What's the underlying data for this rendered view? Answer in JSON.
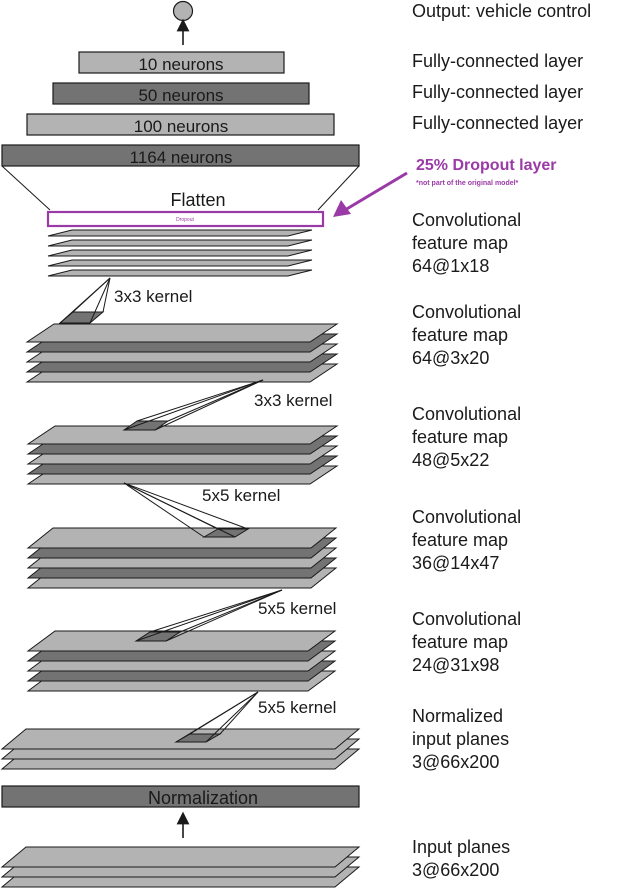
{
  "colors": {
    "plate_light": "#b3b3b3",
    "plate_dark": "#737373",
    "stroke": "#1a1a1a",
    "dropout_accent": "#9a3aa6"
  },
  "output": {
    "label": "Output: vehicle control"
  },
  "dense_layers": [
    {
      "neurons": "10 neurons",
      "desc": "Fully-connected layer"
    },
    {
      "neurons": "50 neurons",
      "desc": "Fully-connected layer"
    },
    {
      "neurons": "100 neurons",
      "desc": "Fully-connected layer"
    },
    {
      "neurons": "1164 neurons",
      "desc": ""
    }
  ],
  "flatten": {
    "label": "Flatten",
    "dropout_inner": "Dropout"
  },
  "dropout": {
    "title": "25% Dropout layer",
    "note": "*not part of the original model*"
  },
  "feature_maps": [
    {
      "line1": "Convolutional",
      "line2": "feature map",
      "line3": "64@1x18"
    },
    {
      "line1": "Convolutional",
      "line2": "feature map",
      "line3": "64@3x20"
    },
    {
      "line1": "Convolutional",
      "line2": "feature map",
      "line3": "48@5x22"
    },
    {
      "line1": "Convolutional",
      "line2": "feature map",
      "line3": "36@14x47"
    },
    {
      "line1": "Convolutional",
      "line2": "feature map",
      "line3": "24@31x98"
    }
  ],
  "kernels": [
    "3x3 kernel",
    "3x3 kernel",
    "5x5 kernel",
    "5x5 kernel",
    "5x5 kernel"
  ],
  "normalized": {
    "line1": "Normalized",
    "line2": "input planes",
    "line3": "3@66x200"
  },
  "normalization": {
    "label": "Normalization"
  },
  "input": {
    "line1": "Input planes",
    "line2": "3@66x200"
  }
}
